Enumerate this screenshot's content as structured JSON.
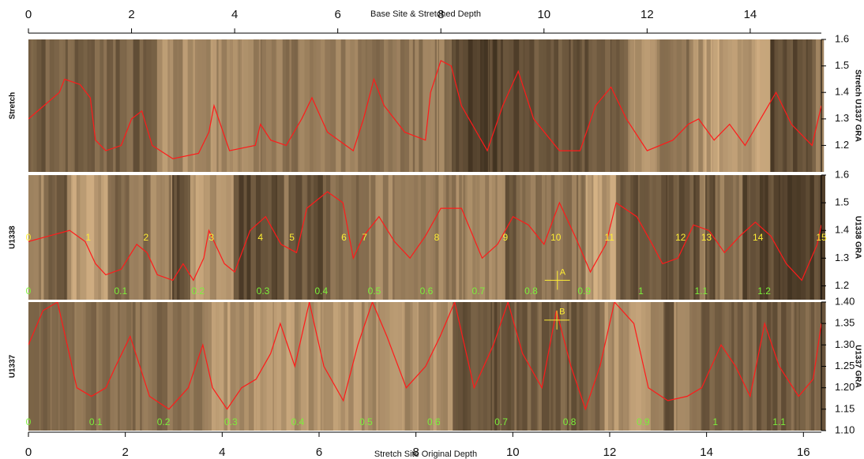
{
  "chart_data": [
    {
      "type": "line",
      "ylabel": "Stretch",
      "y2label": "Stretch U1337 GRA",
      "xlabel": "Base Site & Stretched Depth",
      "xlim": [
        0,
        15.38
      ],
      "xticks": [
        0,
        2,
        4,
        6,
        8,
        10,
        12,
        14
      ],
      "ylim": [
        1.1,
        1.6
      ],
      "yticks": [
        1.2,
        1.3,
        1.4,
        1.5,
        1.6
      ],
      "series": [
        {
          "color": "#ff1a1a",
          "x": [
            0,
            0.3,
            0.6,
            0.7,
            1.0,
            1.2,
            1.3,
            1.5,
            1.8,
            2.0,
            2.2,
            2.4,
            2.8,
            3.3,
            3.5,
            3.6,
            3.9,
            4.4,
            4.5,
            4.7,
            5.0,
            5.3,
            5.5,
            5.8,
            6.3,
            6.5,
            6.7,
            6.9,
            7.3,
            7.7,
            7.8,
            8.0,
            8.2,
            8.4,
            8.9,
            9.2,
            9.5,
            9.8,
            10.3,
            10.7,
            11.0,
            11.3,
            11.6,
            12.0,
            12.5,
            12.8,
            13.0,
            13.3,
            13.6,
            13.9,
            14.2,
            14.5,
            14.8,
            15.2,
            15.38
          ],
          "values": [
            1.3,
            1.35,
            1.4,
            1.45,
            1.43,
            1.38,
            1.22,
            1.18,
            1.2,
            1.3,
            1.33,
            1.2,
            1.15,
            1.17,
            1.25,
            1.35,
            1.18,
            1.2,
            1.28,
            1.22,
            1.2,
            1.3,
            1.38,
            1.25,
            1.18,
            1.3,
            1.45,
            1.35,
            1.25,
            1.22,
            1.4,
            1.52,
            1.5,
            1.35,
            1.18,
            1.35,
            1.48,
            1.3,
            1.18,
            1.18,
            1.35,
            1.42,
            1.3,
            1.18,
            1.22,
            1.28,
            1.3,
            1.22,
            1.28,
            1.2,
            1.3,
            1.4,
            1.28,
            1.2,
            1.35
          ]
        }
      ]
    },
    {
      "type": "line",
      "ylabel": "U1338",
      "y2label": "U1338 GRA",
      "xlim": [
        0,
        15.38
      ],
      "ylim": [
        1.15,
        1.6
      ],
      "yticks": [
        1.2,
        1.3,
        1.4,
        1.5,
        1.6
      ],
      "series": [
        {
          "color": "#ff1a1a",
          "x": [
            0,
            0.4,
            0.8,
            1.1,
            1.3,
            1.5,
            1.8,
            2.1,
            2.3,
            2.5,
            2.8,
            3.0,
            3.2,
            3.4,
            3.5,
            3.8,
            4.0,
            4.3,
            4.6,
            4.9,
            5.2,
            5.4,
            5.8,
            6.1,
            6.3,
            6.5,
            6.8,
            7.1,
            7.4,
            7.7,
            8.0,
            8.4,
            8.8,
            9.1,
            9.4,
            9.7,
            10.0,
            10.3,
            10.6,
            10.9,
            11.2,
            11.4,
            11.8,
            12.1,
            12.3,
            12.6,
            12.9,
            13.2,
            13.5,
            13.8,
            14.1,
            14.4,
            14.7,
            15.0,
            15.3,
            15.38
          ],
          "values": [
            1.36,
            1.38,
            1.4,
            1.36,
            1.28,
            1.24,
            1.26,
            1.35,
            1.32,
            1.24,
            1.22,
            1.28,
            1.22,
            1.3,
            1.4,
            1.28,
            1.25,
            1.4,
            1.45,
            1.35,
            1.32,
            1.48,
            1.54,
            1.5,
            1.3,
            1.38,
            1.45,
            1.36,
            1.3,
            1.38,
            1.48,
            1.48,
            1.3,
            1.35,
            1.45,
            1.42,
            1.35,
            1.5,
            1.38,
            1.25,
            1.35,
            1.5,
            1.45,
            1.35,
            1.28,
            1.3,
            1.42,
            1.4,
            1.32,
            1.38,
            1.43,
            1.38,
            1.28,
            1.22,
            1.35,
            1.42
          ]
        }
      ],
      "stage_labels": [
        {
          "text": "0",
          "x": 0
        },
        {
          "text": "1",
          "x": 1.16
        },
        {
          "text": "2",
          "x": 2.28
        },
        {
          "text": "3",
          "x": 3.55
        },
        {
          "text": "4",
          "x": 4.5
        },
        {
          "text": "5",
          "x": 5.11
        },
        {
          "text": "6",
          "x": 6.12
        },
        {
          "text": "7",
          "x": 6.52
        },
        {
          "text": "8",
          "x": 7.92
        },
        {
          "text": "9",
          "x": 9.25
        },
        {
          "text": "10",
          "x": 10.23
        },
        {
          "text": "11",
          "x": 11.27
        },
        {
          "text": "12",
          "x": 12.65
        },
        {
          "text": "13",
          "x": 13.15
        },
        {
          "text": "14",
          "x": 14.15
        },
        {
          "text": "15",
          "x": 15.38
        }
      ],
      "age_labels": [
        {
          "text": "0",
          "x": 0
        },
        {
          "text": "0.1",
          "x": 1.79
        },
        {
          "text": "0.2",
          "x": 3.29
        },
        {
          "text": "0.3",
          "x": 4.55
        },
        {
          "text": "0.4",
          "x": 5.68
        },
        {
          "text": "0.5",
          "x": 6.71
        },
        {
          "text": "0.6",
          "x": 7.72
        },
        {
          "text": "0.7",
          "x": 8.73
        },
        {
          "text": "0.8",
          "x": 9.75
        },
        {
          "text": "0.9",
          "x": 10.78
        },
        {
          "text": "1",
          "x": 11.88
        },
        {
          "text": "1.1",
          "x": 13.05
        },
        {
          "text": "1.2",
          "x": 14.27
        }
      ],
      "tie_points": [
        {
          "label": "A",
          "x": 10.26,
          "y": 1.22
        }
      ]
    },
    {
      "type": "line",
      "ylabel": "U1337",
      "y2label": "U1337 GRA",
      "xlabel": "Stretch Site Original Depth",
      "xlim": [
        0,
        16.37
      ],
      "xticks": [
        0,
        2,
        4,
        6,
        8,
        10,
        12,
        14,
        16
      ],
      "ylim": [
        1.1,
        1.4
      ],
      "yticks": [
        {
          "value": 1.1,
          "label": "1.10"
        },
        1.15,
        {
          "value": 1.2,
          "label": "1.20"
        },
        1.25,
        {
          "value": 1.3,
          "label": "1.30"
        },
        1.35,
        {
          "value": 1.4,
          "label": "1.40"
        }
      ],
      "series": [
        {
          "color": "#ff1a1a",
          "x": [
            0,
            0.3,
            0.6,
            0.8,
            1.0,
            1.3,
            1.6,
            1.8,
            2.1,
            2.3,
            2.5,
            2.9,
            3.3,
            3.6,
            3.8,
            4.1,
            4.4,
            4.7,
            5.0,
            5.2,
            5.5,
            5.8,
            6.1,
            6.5,
            6.8,
            7.1,
            7.4,
            7.8,
            8.2,
            8.5,
            8.8,
            9.2,
            9.6,
            9.9,
            10.2,
            10.6,
            10.9,
            11.2,
            11.5,
            11.8,
            12.1,
            12.5,
            12.8,
            13.2,
            13.6,
            13.9,
            14.3,
            14.6,
            14.9,
            15.2,
            15.5,
            15.9,
            16.2,
            16.37
          ],
          "values": [
            1.3,
            1.38,
            1.4,
            1.3,
            1.2,
            1.18,
            1.2,
            1.25,
            1.32,
            1.25,
            1.18,
            1.15,
            1.2,
            1.3,
            1.2,
            1.15,
            1.2,
            1.22,
            1.28,
            1.35,
            1.25,
            1.4,
            1.25,
            1.17,
            1.3,
            1.4,
            1.32,
            1.2,
            1.25,
            1.32,
            1.4,
            1.2,
            1.3,
            1.4,
            1.28,
            1.2,
            1.38,
            1.25,
            1.15,
            1.25,
            1.4,
            1.35,
            1.2,
            1.17,
            1.18,
            1.2,
            1.3,
            1.25,
            1.18,
            1.35,
            1.25,
            1.18,
            1.22,
            1.35
          ]
        }
      ],
      "age_labels": [
        {
          "text": "0",
          "x": 0
        },
        {
          "text": "0.1",
          "x": 1.39
        },
        {
          "text": "0.2",
          "x": 2.79
        },
        {
          "text": "0.3",
          "x": 4.18
        },
        {
          "text": "0.4",
          "x": 5.56
        },
        {
          "text": "0.5",
          "x": 6.97
        },
        {
          "text": "0.6",
          "x": 8.37
        },
        {
          "text": "0.7",
          "x": 9.76
        },
        {
          "text": "0.8",
          "x": 11.17
        },
        {
          "text": "0.9",
          "x": 12.69
        },
        {
          "text": "1",
          "x": 14.18
        },
        {
          "text": "1.1",
          "x": 15.5
        }
      ],
      "tie_points": [
        {
          "label": "B",
          "x": 10.91,
          "y": 1.358
        }
      ]
    }
  ]
}
